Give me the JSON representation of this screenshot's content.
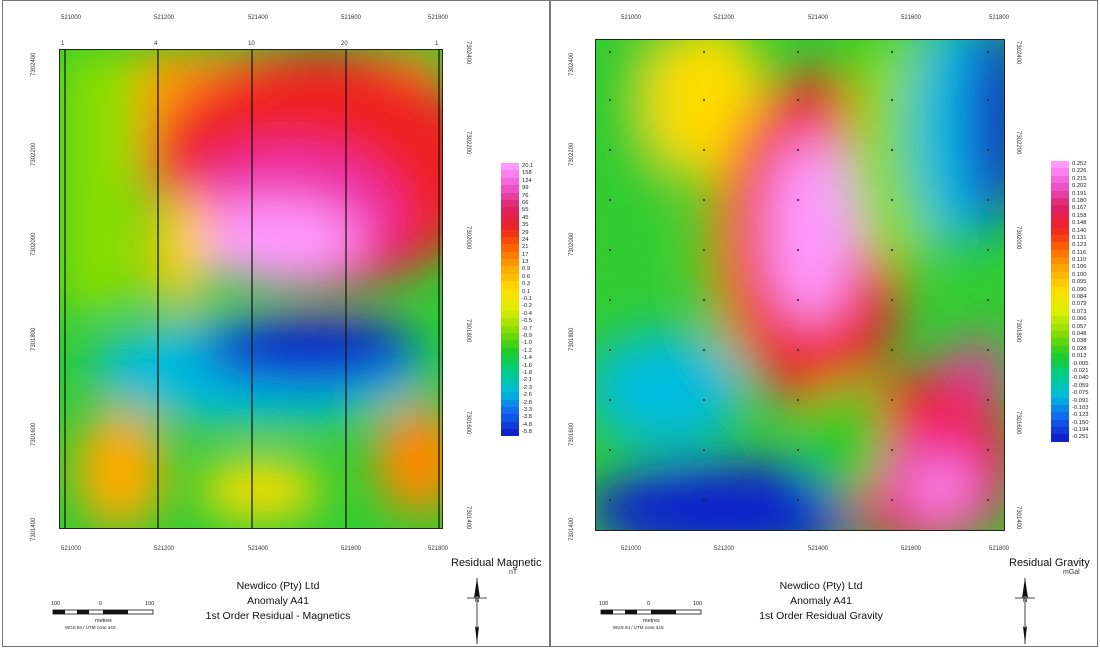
{
  "panels": [
    {
      "id": "magnetics",
      "x_ticks": [
        "521000",
        "521200",
        "521400",
        "521600",
        "521800"
      ],
      "y_ticks": [
        "7301400",
        "7301600",
        "7301800",
        "7302000",
        "7302200",
        "7302400"
      ],
      "line_labels": [
        "1",
        "4",
        "10",
        "20",
        "1"
      ],
      "legend": {
        "title": "Residual Magnetic",
        "unit": "nT",
        "values": [
          "20.1",
          "158",
          "124",
          "99",
          "76",
          "66",
          "55",
          "45",
          "35",
          "29",
          "24",
          "21",
          "17",
          "13",
          "0.9",
          "0.6",
          "0.3",
          "0.1",
          "-0.1",
          "-0.2",
          "-0.4",
          "-0.5",
          "-0.7",
          "-0.9",
          "-1.0",
          "-1.2",
          "-1.4",
          "-1.6",
          "-1.8",
          "-2.1",
          "-2.3",
          "-2.6",
          "-2.8",
          "-3.3",
          "-3.8",
          "-4.8",
          "-5.8"
        ]
      },
      "title_block": [
        "Newdico (Pty) Ltd",
        "Anomaly A41",
        "1st Order Residual - Magnetics"
      ],
      "scale": {
        "labels": [
          "100",
          "0",
          "100"
        ],
        "unit": "metres",
        "note": "WGS 84 / UTM zone 34S"
      }
    },
    {
      "id": "gravity",
      "x_ticks": [
        "521000",
        "521200",
        "521400",
        "521600",
        "521800"
      ],
      "y_ticks": [
        "7301400",
        "7301600",
        "7301800",
        "7302000",
        "7302200",
        "7302400"
      ],
      "legend": {
        "title": "Residual Gravity",
        "unit": "mGal",
        "values": [
          "0.252",
          "0.226",
          "0.215",
          "0.202",
          "0.191",
          "0.180",
          "0.167",
          "0.158",
          "0.148",
          "0.140",
          "0.131",
          "0.123",
          "0.116",
          "0.110",
          "0.106",
          "0.100",
          "0.095",
          "0.090",
          "0.084",
          "0.079",
          "0.073",
          "0.066",
          "0.057",
          "0.048",
          "0.038",
          "0.028",
          "0.013",
          "-0.005",
          "-0.021",
          "-0.040",
          "-0.059",
          "-0.075",
          "-0.091",
          "-0.103",
          "-0.123",
          "-0.150",
          "-0.194",
          "-0.251"
        ]
      },
      "title_block": [
        "Newdico (Pty) Ltd",
        "Anomaly A41",
        "1st Order Residual Gravity"
      ],
      "scale": {
        "labels": [
          "100",
          "0",
          "100"
        ],
        "unit": "metres",
        "note": "WGS 84 / UTM zone 34S"
      }
    }
  ],
  "colors": {
    "ramp": [
      "#ff99ff",
      "#ee55cc",
      "#dd2266",
      "#ee2222",
      "#ff6600",
      "#ffaa00",
      "#ffdd00",
      "#ddee00",
      "#88dd00",
      "#22cc22",
      "#00cc88",
      "#00bbdd",
      "#1166ee",
      "#1122cc"
    ]
  }
}
